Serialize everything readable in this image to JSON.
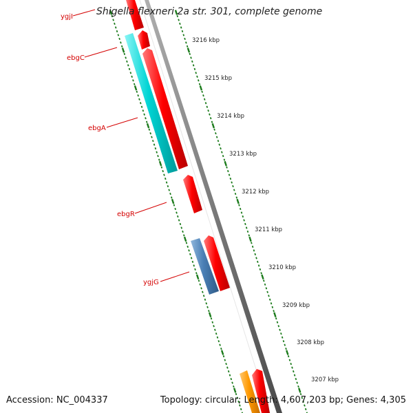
{
  "title": "Shigella flexneri 2a str. 301, complete genome",
  "footer": {
    "accession": "Accession: NC_004337",
    "summary": "Topology: circular; Length: 4,607,203 bp; Genes: 4,305"
  },
  "colors": {
    "backbone": "#7a7a7a",
    "tick": "#1a7a1a",
    "label": "#d40000",
    "gene_forward": "#ff0000",
    "gene_cyan": "#00d4d4",
    "gene_steel": "#4a7fb5",
    "gene_orange": "#ff9900"
  },
  "kbp_markers": [
    {
      "label": "3216 kbp",
      "pos_kbp": 3216
    },
    {
      "label": "3215 kbp",
      "pos_kbp": 3215
    },
    {
      "label": "3214 kbp",
      "pos_kbp": 3214
    },
    {
      "label": "3213 kbp",
      "pos_kbp": 3213
    },
    {
      "label": "3212 kbp",
      "pos_kbp": 3212
    },
    {
      "label": "3211 kbp",
      "pos_kbp": 3211
    },
    {
      "label": "3210 kbp",
      "pos_kbp": 3210
    },
    {
      "label": "3209 kbp",
      "pos_kbp": 3209
    },
    {
      "label": "3208 kbp",
      "pos_kbp": 3208
    },
    {
      "label": "3207 kbp",
      "pos_kbp": 3207
    }
  ],
  "gene_labels": [
    {
      "name": "ygjI"
    },
    {
      "name": "ebgC"
    },
    {
      "name": "ebgA"
    },
    {
      "name": "ebgR"
    },
    {
      "name": "ygjG"
    }
  ]
}
